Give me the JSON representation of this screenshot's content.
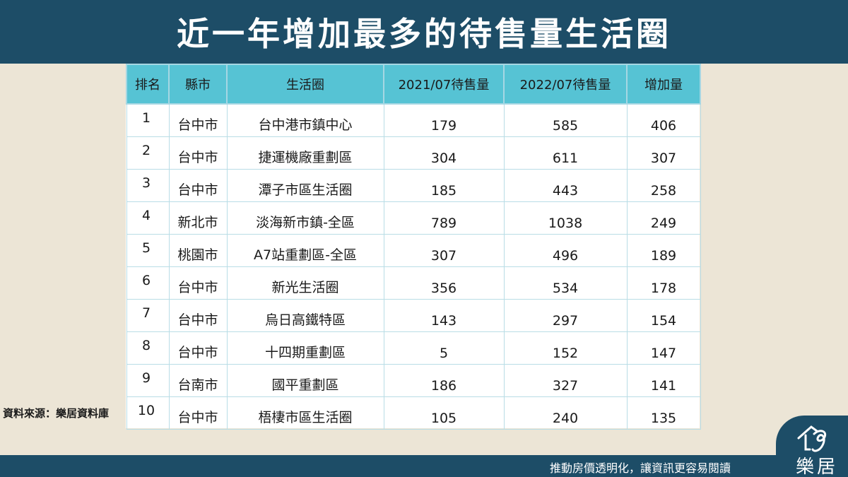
{
  "title": "近一年增加最多的待售量生活圈",
  "table": {
    "headers": [
      "排名",
      "縣市",
      "生活圈",
      "2021/07待售量",
      "2022/07待售量",
      "增加量"
    ],
    "rows": [
      {
        "rank": "1",
        "city": "台中市",
        "area": "台中港市鎮中心",
        "y2021": "179",
        "y2022": "585",
        "increase": "406"
      },
      {
        "rank": "2",
        "city": "台中市",
        "area": "捷運機廠重劃區",
        "y2021": "304",
        "y2022": "611",
        "increase": "307"
      },
      {
        "rank": "3",
        "city": "台中市",
        "area": "潭子市區生活圈",
        "y2021": "185",
        "y2022": "443",
        "increase": "258"
      },
      {
        "rank": "4",
        "city": "新北市",
        "area": "淡海新市鎮-全區",
        "y2021": "789",
        "y2022": "1038",
        "increase": "249"
      },
      {
        "rank": "5",
        "city": "桃園市",
        "area": "A7站重劃區-全區",
        "y2021": "307",
        "y2022": "496",
        "increase": "189"
      },
      {
        "rank": "6",
        "city": "台中市",
        "area": "新光生活圈",
        "y2021": "356",
        "y2022": "534",
        "increase": "178"
      },
      {
        "rank": "7",
        "city": "台中市",
        "area": "烏日高鐵特區",
        "y2021": "143",
        "y2022": "297",
        "increase": "154"
      },
      {
        "rank": "8",
        "city": "台中市",
        "area": "十四期重劃區",
        "y2021": "5",
        "y2022": "152",
        "increase": "147"
      },
      {
        "rank": "9",
        "city": "台南市",
        "area": "國平重劃區",
        "y2021": "186",
        "y2022": "327",
        "increase": "141"
      },
      {
        "rank": "10",
        "city": "台中市",
        "area": "梧棲市區生活圈",
        "y2021": "105",
        "y2022": "240",
        "increase": "135"
      }
    ]
  },
  "source": "資料來源：樂居資料庫",
  "tagline": "推動房價透明化，讓資訊更容易閱讀",
  "logo": {
    "text": "樂居",
    "icon": "house-swirl-logo-icon"
  },
  "colors": {
    "brand": "#1d4d67",
    "header": "#56c3d4",
    "background": "#ece5d6"
  }
}
